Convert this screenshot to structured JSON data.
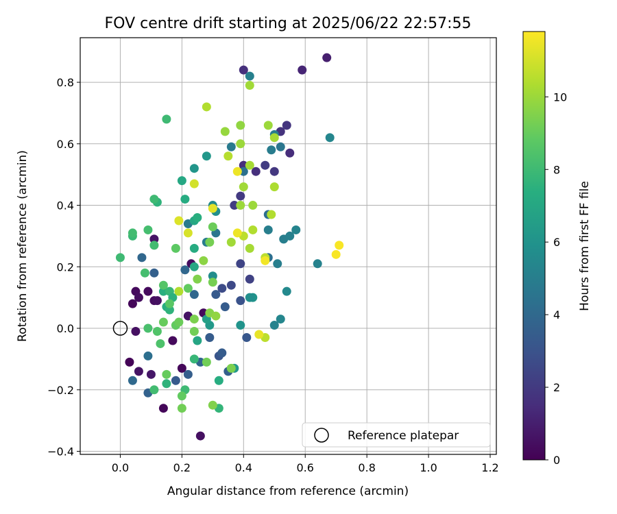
{
  "chart_data": {
    "type": "scatter",
    "title": "FOV centre drift starting at 2025/06/22 22:57:55",
    "xlabel": "Angular distance from reference (arcmin)",
    "ylabel": "Rotation from reference (arcmin)",
    "xlim": [
      -0.13,
      1.22
    ],
    "ylim": [
      -0.41,
      0.945
    ],
    "xticks": [
      "0.0",
      "0.2",
      "0.4",
      "0.6",
      "0.8",
      "1.0",
      "1.2"
    ],
    "xtick_values": [
      0.0,
      0.2,
      0.4,
      0.6,
      0.8,
      1.0,
      1.2
    ],
    "yticks": [
      "−0.4",
      "−0.2",
      "0.0",
      "0.2",
      "0.4",
      "0.6",
      "0.8"
    ],
    "ytick_values": [
      -0.4,
      -0.2,
      0.0,
      0.2,
      0.4,
      0.6,
      0.8
    ],
    "grid": true,
    "colormap": "viridis",
    "colorbar": {
      "label": "Hours from first FF file",
      "range": [
        0,
        11.8
      ],
      "ticks": [
        "0",
        "2",
        "4",
        "6",
        "8",
        "10"
      ],
      "tick_values": [
        0,
        2,
        4,
        6,
        8,
        10
      ]
    },
    "legend": {
      "position": "bottom-right",
      "entries": [
        "Reference platepar"
      ]
    },
    "reference_point": {
      "x": 0.0,
      "y": 0.0,
      "label": "Reference platepar"
    },
    "points": [
      {
        "x": 0.03,
        "y": -0.11,
        "h": 0.1
      },
      {
        "x": 0.04,
        "y": 0.08,
        "h": 0.2
      },
      {
        "x": 0.05,
        "y": 0.12,
        "h": 0.3
      },
      {
        "x": 0.06,
        "y": 0.1,
        "h": 0.4
      },
      {
        "x": 0.05,
        "y": -0.01,
        "h": 0.5
      },
      {
        "x": 0.06,
        "y": -0.14,
        "h": 0.6
      },
      {
        "x": 0.1,
        "y": -0.15,
        "h": 0.7
      },
      {
        "x": 0.09,
        "y": 0.12,
        "h": 0.3
      },
      {
        "x": 0.11,
        "y": 0.09,
        "h": 0.4
      },
      {
        "x": 0.12,
        "y": 0.09,
        "h": 0.5
      },
      {
        "x": 0.11,
        "y": 0.29,
        "h": 0.6
      },
      {
        "x": 0.14,
        "y": -0.26,
        "h": 0.2
      },
      {
        "x": 0.17,
        "y": -0.04,
        "h": 0.3
      },
      {
        "x": 0.2,
        "y": -0.13,
        "h": 0.2
      },
      {
        "x": 0.26,
        "y": -0.35,
        "h": 0.5
      },
      {
        "x": 0.23,
        "y": 0.21,
        "h": 0.4
      },
      {
        "x": 0.22,
        "y": 0.04,
        "h": 0.6
      },
      {
        "x": 0.27,
        "y": 0.05,
        "h": 0.3
      },
      {
        "x": 0.4,
        "y": 0.84,
        "h": 1.6
      },
      {
        "x": 0.59,
        "y": 0.84,
        "h": 1.2
      },
      {
        "x": 0.67,
        "y": 0.88,
        "h": 1.0
      },
      {
        "x": 0.54,
        "y": 0.66,
        "h": 1.8
      },
      {
        "x": 0.52,
        "y": 0.64,
        "h": 1.7
      },
      {
        "x": 0.55,
        "y": 0.57,
        "h": 1.5
      },
      {
        "x": 0.5,
        "y": 0.51,
        "h": 1.9
      },
      {
        "x": 0.47,
        "y": 0.53,
        "h": 2.1
      },
      {
        "x": 0.44,
        "y": 0.51,
        "h": 1.6
      },
      {
        "x": 0.4,
        "y": 0.53,
        "h": 1.5
      },
      {
        "x": 0.39,
        "y": 0.43,
        "h": 2.0
      },
      {
        "x": 0.37,
        "y": 0.4,
        "h": 2.1
      },
      {
        "x": 0.39,
        "y": 0.21,
        "h": 2.4
      },
      {
        "x": 0.42,
        "y": 0.16,
        "h": 2.3
      },
      {
        "x": 0.33,
        "y": 0.13,
        "h": 2.7
      },
      {
        "x": 0.36,
        "y": 0.14,
        "h": 2.6
      },
      {
        "x": 0.39,
        "y": 0.09,
        "h": 3.0
      },
      {
        "x": 0.34,
        "y": 0.07,
        "h": 3.4
      },
      {
        "x": 0.31,
        "y": 0.11,
        "h": 3.3
      },
      {
        "x": 0.32,
        "y": -0.09,
        "h": 3.1
      },
      {
        "x": 0.33,
        "y": -0.08,
        "h": 3.4
      },
      {
        "x": 0.35,
        "y": -0.14,
        "h": 3.6
      },
      {
        "x": 0.29,
        "y": -0.03,
        "h": 3.4
      },
      {
        "x": 0.41,
        "y": -0.03,
        "h": 3.2
      },
      {
        "x": 0.24,
        "y": 0.11,
        "h": 3.9
      },
      {
        "x": 0.26,
        "y": -0.11,
        "h": 3.8
      },
      {
        "x": 0.22,
        "y": -0.15,
        "h": 3.5
      },
      {
        "x": 0.18,
        "y": -0.17,
        "h": 3.3
      },
      {
        "x": 0.09,
        "y": -0.21,
        "h": 3.7
      },
      {
        "x": 0.04,
        "y": -0.17,
        "h": 4.0
      },
      {
        "x": 0.09,
        "y": -0.09,
        "h": 4.3
      },
      {
        "x": 0.07,
        "y": 0.23,
        "h": 3.9
      },
      {
        "x": 0.11,
        "y": 0.18,
        "h": 3.6
      },
      {
        "x": 0.21,
        "y": 0.19,
        "h": 3.9
      },
      {
        "x": 0.22,
        "y": 0.34,
        "h": 4.8
      },
      {
        "x": 0.28,
        "y": 0.28,
        "h": 4.9
      },
      {
        "x": 0.31,
        "y": 0.31,
        "h": 4.6
      },
      {
        "x": 0.36,
        "y": 0.59,
        "h": 4.8
      },
      {
        "x": 0.4,
        "y": 0.51,
        "h": 4.4
      },
      {
        "x": 0.42,
        "y": 0.82,
        "h": 5.1
      },
      {
        "x": 0.48,
        "y": 0.37,
        "h": 4.3
      },
      {
        "x": 0.49,
        "y": 0.58,
        "h": 4.9
      },
      {
        "x": 0.52,
        "y": 0.59,
        "h": 4.6
      },
      {
        "x": 0.5,
        "y": 0.63,
        "h": 4.9
      },
      {
        "x": 0.48,
        "y": 0.32,
        "h": 5.0
      },
      {
        "x": 0.48,
        "y": 0.23,
        "h": 4.3
      },
      {
        "x": 0.51,
        "y": 0.21,
        "h": 5.0
      },
      {
        "x": 0.53,
        "y": 0.29,
        "h": 5.0
      },
      {
        "x": 0.55,
        "y": 0.3,
        "h": 5.1
      },
      {
        "x": 0.57,
        "y": 0.32,
        "h": 5.3
      },
      {
        "x": 0.64,
        "y": 0.21,
        "h": 5.2
      },
      {
        "x": 0.68,
        "y": 0.62,
        "h": 5.4
      },
      {
        "x": 0.54,
        "y": 0.12,
        "h": 5.5
      },
      {
        "x": 0.52,
        "y": 0.03,
        "h": 5.4
      },
      {
        "x": 0.5,
        "y": 0.01,
        "h": 5.2
      },
      {
        "x": 0.43,
        "y": 0.1,
        "h": 6.0
      },
      {
        "x": 0.42,
        "y": 0.1,
        "h": 5.8
      },
      {
        "x": 0.39,
        "y": 0.01,
        "h": 6.0
      },
      {
        "x": 0.37,
        "y": -0.13,
        "h": 6.3
      },
      {
        "x": 0.3,
        "y": 0.17,
        "h": 5.7
      },
      {
        "x": 0.31,
        "y": 0.38,
        "h": 5.8
      },
      {
        "x": 0.3,
        "y": 0.4,
        "h": 5.6
      },
      {
        "x": 0.24,
        "y": 0.52,
        "h": 6.1
      },
      {
        "x": 0.28,
        "y": 0.56,
        "h": 6.2
      },
      {
        "x": 0.29,
        "y": 0.01,
        "h": 6.3
      },
      {
        "x": 0.28,
        "y": 0.03,
        "h": 6.6
      },
      {
        "x": 0.25,
        "y": -0.04,
        "h": 6.9
      },
      {
        "x": 0.24,
        "y": 0.2,
        "h": 7.0
      },
      {
        "x": 0.24,
        "y": 0.26,
        "h": 7.2
      },
      {
        "x": 0.24,
        "y": 0.35,
        "h": 7.0
      },
      {
        "x": 0.25,
        "y": 0.36,
        "h": 7.4
      },
      {
        "x": 0.2,
        "y": 0.48,
        "h": 7.0
      },
      {
        "x": 0.21,
        "y": 0.42,
        "h": 7.2
      },
      {
        "x": 0.32,
        "y": -0.17,
        "h": 7.3
      },
      {
        "x": 0.32,
        "y": -0.26,
        "h": 7.7
      },
      {
        "x": 0.24,
        "y": -0.1,
        "h": 7.8
      },
      {
        "x": 0.21,
        "y": -0.2,
        "h": 8.0
      },
      {
        "x": 0.15,
        "y": -0.18,
        "h": 7.6
      },
      {
        "x": 0.14,
        "y": 0.12,
        "h": 7.4
      },
      {
        "x": 0.16,
        "y": 0.12,
        "h": 7.8
      },
      {
        "x": 0.17,
        "y": 0.1,
        "h": 7.5
      },
      {
        "x": 0.15,
        "y": 0.07,
        "h": 7.3
      },
      {
        "x": 0.16,
        "y": 0.06,
        "h": 7.6
      },
      {
        "x": 0.12,
        "y": 0.41,
        "h": 7.6
      },
      {
        "x": 0.11,
        "y": 0.42,
        "h": 8.0
      },
      {
        "x": 0.08,
        "y": 0.18,
        "h": 8.2
      },
      {
        "x": 0.04,
        "y": 0.3,
        "h": 7.9
      },
      {
        "x": 0.04,
        "y": 0.31,
        "h": 8.1
      },
      {
        "x": 0.0,
        "y": 0.23,
        "h": 8.0
      },
      {
        "x": 0.09,
        "y": 0.32,
        "h": 8.2
      },
      {
        "x": 0.11,
        "y": 0.27,
        "h": 8.1
      },
      {
        "x": 0.15,
        "y": 0.68,
        "h": 8.0
      },
      {
        "x": 0.09,
        "y": 0.0,
        "h": 8.3
      },
      {
        "x": 0.12,
        "y": -0.01,
        "h": 8.5
      },
      {
        "x": 0.13,
        "y": -0.05,
        "h": 8.4
      },
      {
        "x": 0.11,
        "y": -0.2,
        "h": 8.1
      },
      {
        "x": 0.14,
        "y": 0.14,
        "h": 8.6
      },
      {
        "x": 0.16,
        "y": 0.08,
        "h": 8.7
      },
      {
        "x": 0.18,
        "y": 0.26,
        "h": 8.8
      },
      {
        "x": 0.14,
        "y": 0.02,
        "h": 9.0
      },
      {
        "x": 0.18,
        "y": 0.01,
        "h": 8.9
      },
      {
        "x": 0.19,
        "y": 0.02,
        "h": 9.1
      },
      {
        "x": 0.15,
        "y": -0.15,
        "h": 9.0
      },
      {
        "x": 0.2,
        "y": -0.22,
        "h": 8.9
      },
      {
        "x": 0.2,
        "y": -0.26,
        "h": 9.2
      },
      {
        "x": 0.22,
        "y": 0.13,
        "h": 8.9
      },
      {
        "x": 0.24,
        "y": -0.01,
        "h": 9.2
      },
      {
        "x": 0.24,
        "y": 0.03,
        "h": 9.4
      },
      {
        "x": 0.25,
        "y": 0.16,
        "h": 9.5
      },
      {
        "x": 0.28,
        "y": -0.11,
        "h": 9.2
      },
      {
        "x": 0.29,
        "y": 0.28,
        "h": 9.3
      },
      {
        "x": 0.3,
        "y": 0.33,
        "h": 9.1
      },
      {
        "x": 0.3,
        "y": 0.15,
        "h": 9.3
      },
      {
        "x": 0.29,
        "y": 0.05,
        "h": 9.6
      },
      {
        "x": 0.31,
        "y": 0.04,
        "h": 9.8
      },
      {
        "x": 0.3,
        "y": -0.25,
        "h": 9.5
      },
      {
        "x": 0.27,
        "y": 0.22,
        "h": 9.7
      },
      {
        "x": 0.36,
        "y": -0.13,
        "h": 9.4
      },
      {
        "x": 0.34,
        "y": 0.64,
        "h": 9.9
      },
      {
        "x": 0.39,
        "y": 0.66,
        "h": 9.8
      },
      {
        "x": 0.39,
        "y": 0.6,
        "h": 10.0
      },
      {
        "x": 0.39,
        "y": 0.4,
        "h": 10.0
      },
      {
        "x": 0.4,
        "y": 0.46,
        "h": 10.1
      },
      {
        "x": 0.42,
        "y": 0.79,
        "h": 10.1
      },
      {
        "x": 0.42,
        "y": 0.53,
        "h": 10.2
      },
      {
        "x": 0.43,
        "y": 0.32,
        "h": 10.4
      },
      {
        "x": 0.43,
        "y": 0.4,
        "h": 10.0
      },
      {
        "x": 0.42,
        "y": 0.26,
        "h": 10.2
      },
      {
        "x": 0.36,
        "y": 0.28,
        "h": 10.1
      },
      {
        "x": 0.4,
        "y": 0.3,
        "h": 10.6
      },
      {
        "x": 0.48,
        "y": 0.66,
        "h": 10.0
      },
      {
        "x": 0.5,
        "y": 0.62,
        "h": 10.2
      },
      {
        "x": 0.5,
        "y": 0.46,
        "h": 10.3
      },
      {
        "x": 0.49,
        "y": 0.37,
        "h": 10.4
      },
      {
        "x": 0.47,
        "y": 0.23,
        "h": 10.6
      },
      {
        "x": 0.47,
        "y": -0.03,
        "h": 10.6
      },
      {
        "x": 0.28,
        "y": 0.72,
        "h": 10.4
      },
      {
        "x": 0.35,
        "y": 0.56,
        "h": 10.5
      },
      {
        "x": 0.19,
        "y": 0.12,
        "h": 10.4
      },
      {
        "x": 0.24,
        "y": 0.47,
        "h": 11.0
      },
      {
        "x": 0.22,
        "y": 0.31,
        "h": 11.1
      },
      {
        "x": 0.19,
        "y": 0.35,
        "h": 11.2
      },
      {
        "x": 0.3,
        "y": 0.39,
        "h": 11.3
      },
      {
        "x": 0.38,
        "y": 0.31,
        "h": 11.5
      },
      {
        "x": 0.38,
        "y": 0.51,
        "h": 11.5
      },
      {
        "x": 0.45,
        "y": -0.02,
        "h": 11.4
      },
      {
        "x": 0.47,
        "y": 0.22,
        "h": 11.6
      },
      {
        "x": 0.71,
        "y": 0.27,
        "h": 11.7
      },
      {
        "x": 0.7,
        "y": 0.24,
        "h": 11.7
      }
    ]
  }
}
